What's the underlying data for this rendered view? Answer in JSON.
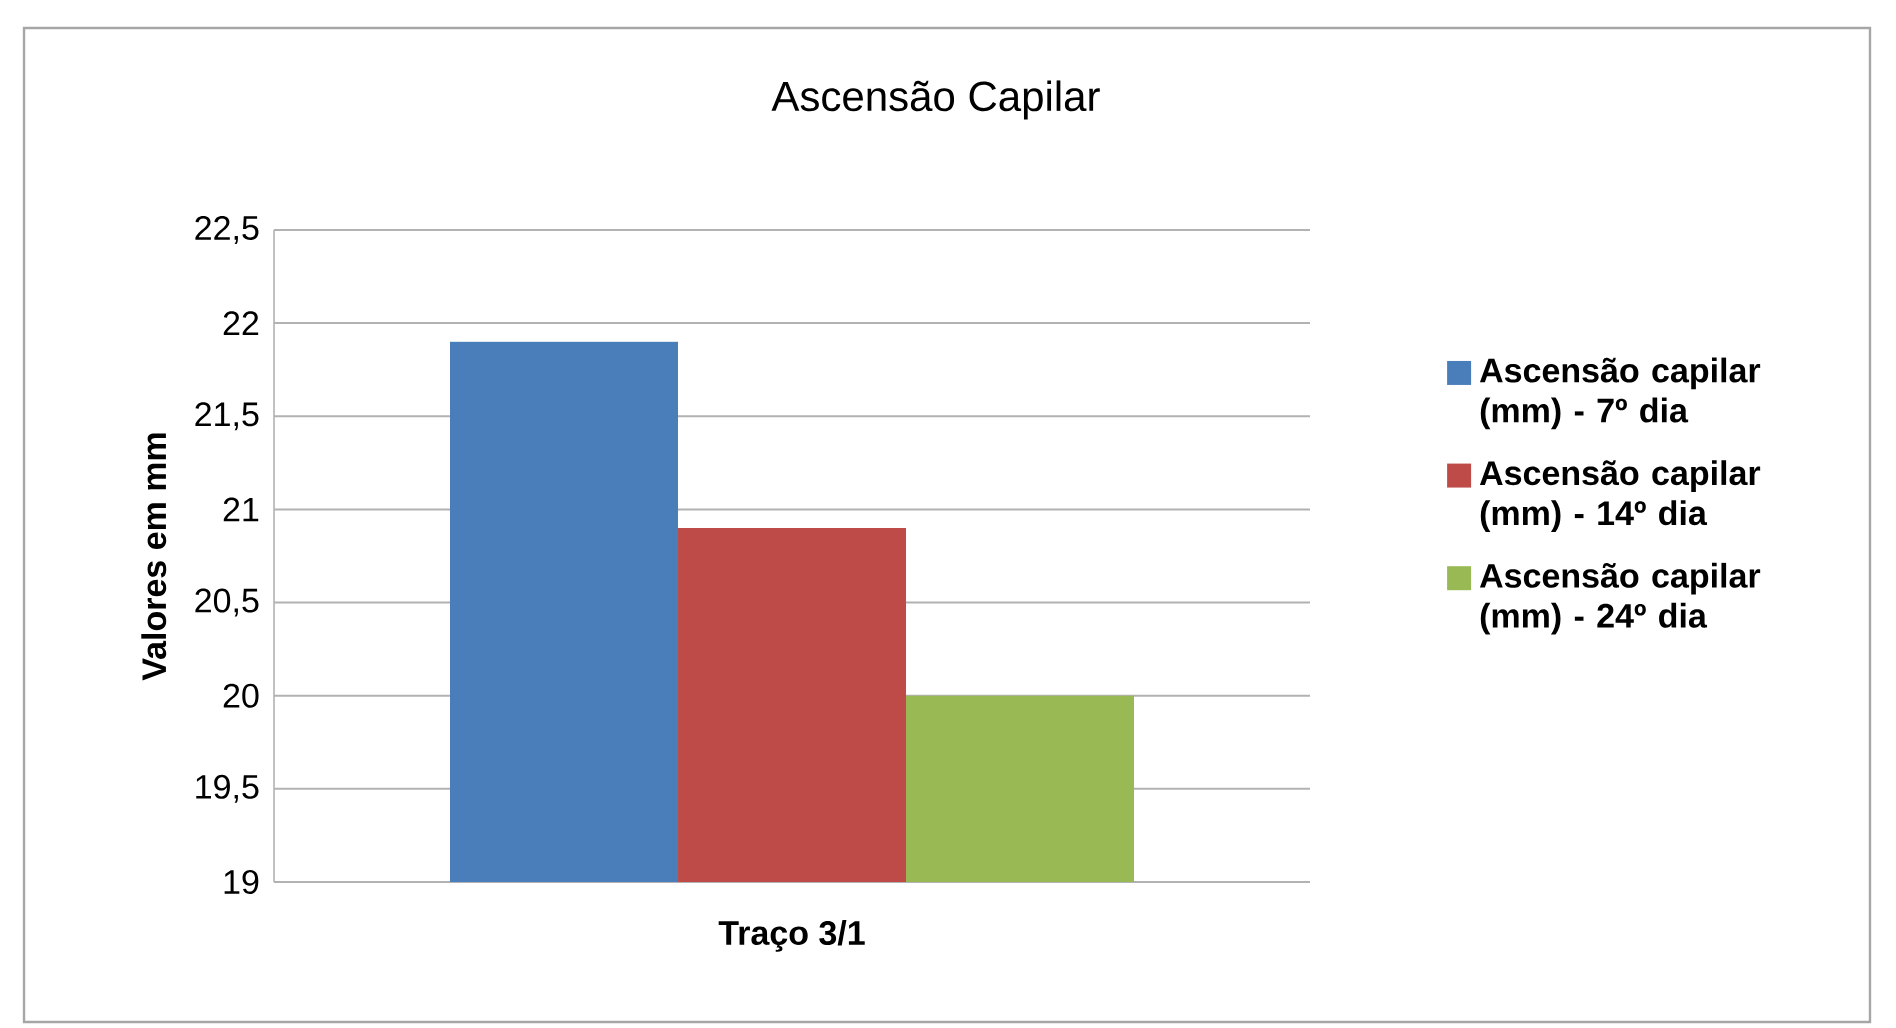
{
  "chart_data": {
    "type": "bar",
    "title": "Ascensão Capilar",
    "ylabel": "Valores em mm",
    "categories": [
      "Traço 3/1"
    ],
    "series": [
      {
        "name": "Ascensão capilar (mm) - 7º dia",
        "color": "#4a7ebb",
        "values": [
          21.9
        ]
      },
      {
        "name": "Ascensão capilar (mm) - 14º dia",
        "color": "#be4b48",
        "values": [
          20.9
        ]
      },
      {
        "name": "Ascensão capilar (mm) - 24º dia",
        "color": "#98b954",
        "values": [
          20.0
        ]
      }
    ],
    "ylim": [
      19,
      22.5
    ],
    "yticks": [
      19,
      {
        "value": 19.5,
        "label": "19,5"
      },
      20,
      {
        "value": 20.5,
        "label": "20,5"
      },
      21,
      {
        "value": 21.5,
        "label": "21,5"
      },
      22,
      {
        "value": 22.5,
        "label": "22,5"
      }
    ],
    "grid": "y",
    "legend": "right"
  }
}
